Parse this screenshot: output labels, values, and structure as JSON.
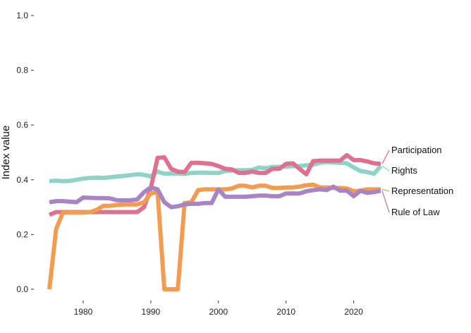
{
  "chart_data": {
    "type": "line",
    "title": "",
    "xlabel": "",
    "ylabel": "Index value",
    "xlim": [
      1975,
      2024
    ],
    "ylim": [
      0,
      1
    ],
    "x_ticks": [
      1980,
      1990,
      2000,
      2010,
      2020
    ],
    "y_ticks": [
      "0.0",
      "0.2",
      "0.4",
      "0.6",
      "0.8",
      "1.0"
    ],
    "grid": false,
    "legend": "direct labels at right end of lines",
    "x": [
      1975,
      1976,
      1977,
      1978,
      1979,
      1980,
      1981,
      1982,
      1983,
      1984,
      1985,
      1986,
      1987,
      1988,
      1989,
      1990,
      1991,
      1992,
      1993,
      1994,
      1995,
      1996,
      1997,
      1998,
      1999,
      2000,
      2001,
      2002,
      2003,
      2004,
      2005,
      2006,
      2007,
      2008,
      2009,
      2010,
      2011,
      2012,
      2013,
      2014,
      2015,
      2016,
      2017,
      2018,
      2019,
      2020,
      2021,
      2022,
      2023,
      2024
    ],
    "series": [
      {
        "name": "Rights",
        "color": "#8dd3c7",
        "values": [
          0.395,
          0.397,
          0.395,
          0.396,
          0.4,
          0.404,
          0.407,
          0.408,
          0.407,
          0.409,
          0.412,
          0.414,
          0.417,
          0.42,
          0.418,
          0.412,
          0.43,
          0.422,
          0.423,
          0.423,
          0.421,
          0.425,
          0.426,
          0.426,
          0.425,
          0.425,
          0.432,
          0.434,
          0.435,
          0.435,
          0.436,
          0.445,
          0.442,
          0.447,
          0.447,
          0.448,
          0.45,
          0.45,
          0.453,
          0.455,
          0.462,
          0.465,
          0.463,
          0.462,
          0.46,
          0.445,
          0.432,
          0.428,
          0.422,
          0.45
        ]
      },
      {
        "name": "Participation",
        "color": "#e07090",
        "values": [
          0.272,
          0.282,
          0.282,
          0.282,
          0.282,
          0.282,
          0.282,
          0.282,
          0.282,
          0.282,
          0.282,
          0.282,
          0.282,
          0.282,
          0.3,
          0.37,
          0.48,
          0.482,
          0.44,
          0.43,
          0.428,
          0.462,
          0.462,
          0.46,
          0.458,
          0.45,
          0.44,
          0.438,
          0.425,
          0.425,
          0.43,
          0.425,
          0.425,
          0.44,
          0.44,
          0.458,
          0.46,
          0.44,
          0.42,
          0.468,
          0.47,
          0.47,
          0.47,
          0.47,
          0.49,
          0.472,
          0.472,
          0.467,
          0.46,
          0.458
        ]
      },
      {
        "name": "Representation",
        "color": "#f39c4f",
        "values": [
          0.0,
          0.22,
          0.28,
          0.28,
          0.28,
          0.28,
          0.282,
          0.29,
          0.305,
          0.305,
          0.308,
          0.31,
          0.31,
          0.31,
          0.318,
          0.35,
          0.355,
          0.0,
          0.0,
          0.0,
          0.315,
          0.318,
          0.362,
          0.365,
          0.365,
          0.365,
          0.365,
          0.368,
          0.378,
          0.378,
          0.372,
          0.378,
          0.378,
          0.37,
          0.37,
          0.372,
          0.372,
          0.375,
          0.38,
          0.382,
          0.372,
          0.372,
          0.37,
          0.37,
          0.368,
          0.358,
          0.36,
          0.365,
          0.365,
          0.365
        ]
      },
      {
        "name": "Rule of Law",
        "color": "#a884c4",
        "values": [
          0.318,
          0.322,
          0.322,
          0.32,
          0.318,
          0.335,
          0.334,
          0.333,
          0.333,
          0.332,
          0.325,
          0.325,
          0.325,
          0.328,
          0.355,
          0.372,
          0.365,
          0.318,
          0.3,
          0.303,
          0.31,
          0.312,
          0.312,
          0.315,
          0.315,
          0.365,
          0.338,
          0.338,
          0.338,
          0.338,
          0.34,
          0.342,
          0.342,
          0.34,
          0.34,
          0.35,
          0.35,
          0.35,
          0.358,
          0.362,
          0.365,
          0.362,
          0.375,
          0.36,
          0.36,
          0.34,
          0.36,
          0.352,
          0.355,
          0.36
        ]
      }
    ]
  }
}
